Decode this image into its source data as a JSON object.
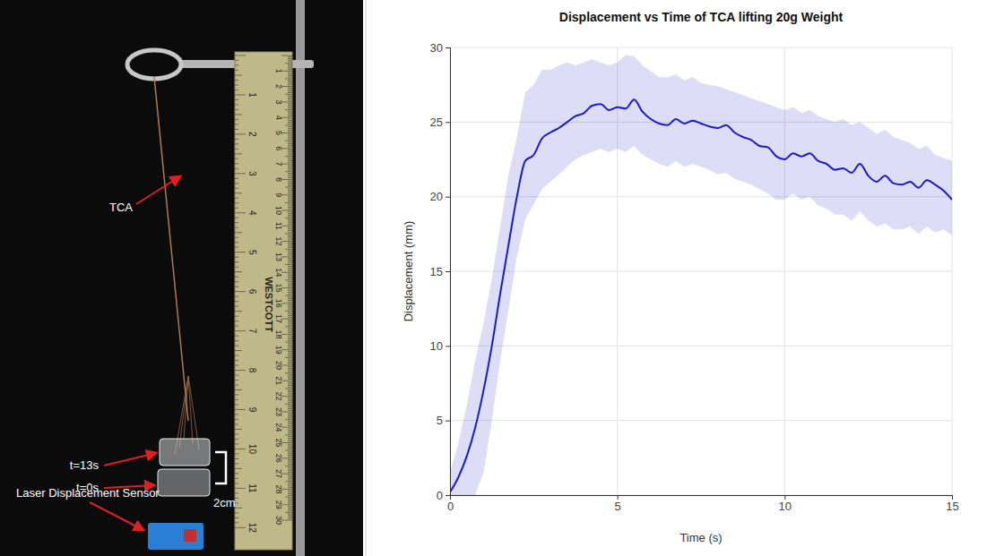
{
  "chart_data": {
    "type": "line",
    "title": "Displacement vs Time of TCA lifting 20g Weight",
    "x_label": "Time (s)",
    "y_label": "Displacement (mm)",
    "x": [
      0,
      0.25,
      0.5,
      0.75,
      1,
      1.25,
      1.5,
      1.75,
      2,
      2.25,
      2.5,
      2.75,
      3,
      3.25,
      3.5,
      3.75,
      4,
      4.25,
      4.5,
      4.75,
      5,
      5.25,
      5.5,
      5.75,
      6,
      6.25,
      6.5,
      6.75,
      7,
      7.25,
      7.5,
      7.75,
      8,
      8.25,
      8.5,
      8.75,
      9,
      9.25,
      9.5,
      9.75,
      10,
      10.25,
      10.5,
      10.75,
      11,
      11.25,
      11.5,
      11.75,
      12,
      12.25,
      12.5,
      12.75,
      13,
      13.25,
      13.5,
      13.75,
      14,
      14.25,
      14.5,
      14.75,
      15
    ],
    "series": [
      {
        "color": "#1a1acc",
        "values": [
          0.2,
          1.2,
          2.6,
          4.5,
          7.0,
          10.0,
          13.5,
          16.8,
          20.0,
          22.4,
          22.8,
          23.9,
          24.3,
          24.6,
          25.0,
          25.4,
          25.6,
          26.1,
          26.2,
          25.8,
          26.0,
          25.9,
          26.5,
          25.7,
          25.2,
          24.9,
          24.8,
          25.2,
          24.9,
          25.1,
          24.9,
          24.7,
          24.6,
          24.8,
          24.3,
          24.0,
          23.8,
          23.4,
          23.3,
          22.7,
          22.5,
          22.9,
          22.7,
          22.9,
          22.4,
          22.2,
          21.8,
          21.9,
          21.6,
          22.2,
          21.4,
          21.0,
          21.4,
          20.9,
          20.8,
          21.0,
          20.6,
          21.1,
          20.8,
          20.4,
          19.8
        ],
        "upper": [
          1.5,
          3.5,
          6.0,
          9.0,
          11.5,
          14.5,
          18.0,
          21.5,
          24.0,
          27.0,
          27.5,
          28.5,
          28.5,
          28.8,
          29.0,
          28.8,
          29.0,
          29.2,
          29.0,
          28.8,
          29.0,
          29.5,
          29.4,
          28.8,
          28.4,
          28.0,
          28.0,
          28.2,
          27.8,
          28.0,
          27.6,
          27.5,
          27.4,
          27.2,
          27.0,
          26.8,
          26.6,
          26.4,
          26.2,
          26.0,
          25.8,
          26.0,
          25.6,
          25.8,
          25.4,
          25.2,
          25.0,
          25.2,
          24.8,
          25.0,
          24.6,
          24.2,
          24.5,
          24.0,
          23.8,
          23.6,
          23.2,
          23.4,
          22.8,
          22.6,
          22.4
        ],
        "lower": [
          0,
          0,
          0,
          0,
          1.5,
          5.0,
          9.0,
          12.5,
          16.0,
          18.5,
          19.5,
          20.5,
          21.0,
          21.5,
          22.0,
          22.5,
          22.8,
          23.0,
          23.2,
          23.0,
          23.2,
          23.0,
          23.4,
          22.8,
          22.5,
          22.2,
          22.0,
          22.4,
          22.0,
          22.2,
          22.0,
          21.8,
          21.5,
          21.6,
          21.2,
          21.0,
          20.8,
          20.5,
          20.2,
          19.8,
          19.8,
          20.2,
          19.8,
          20.0,
          19.4,
          19.2,
          18.8,
          18.8,
          18.4,
          19.0,
          18.4,
          18.0,
          18.2,
          17.8,
          17.8,
          18.0,
          17.5,
          18.0,
          17.6,
          17.8,
          17.4
        ]
      }
    ],
    "xlim": [
      0,
      15
    ],
    "xticks": [
      0,
      5,
      10,
      15
    ],
    "ylim": [
      0,
      30
    ],
    "yticks": [
      0,
      5,
      10,
      15,
      20,
      25,
      30
    ],
    "grid": true
  },
  "photo": {
    "labels": {
      "actuator": "TCA",
      "end": "t=13s",
      "start": "t=0s",
      "scale": "2cm",
      "sensor": "Laser Displacement Sensor"
    },
    "ruler": {
      "brand": "WESTCOTT",
      "cm": [
        1,
        2,
        3,
        4,
        5,
        6,
        7,
        8,
        9,
        10,
        11,
        12,
        13,
        14,
        15,
        16,
        17,
        18,
        19,
        20,
        21,
        22,
        23,
        24,
        25,
        26,
        27,
        28,
        29,
        30
      ],
      "inch": [
        1,
        2,
        3,
        4,
        5,
        6,
        7,
        8,
        9,
        10,
        11,
        12
      ]
    }
  }
}
